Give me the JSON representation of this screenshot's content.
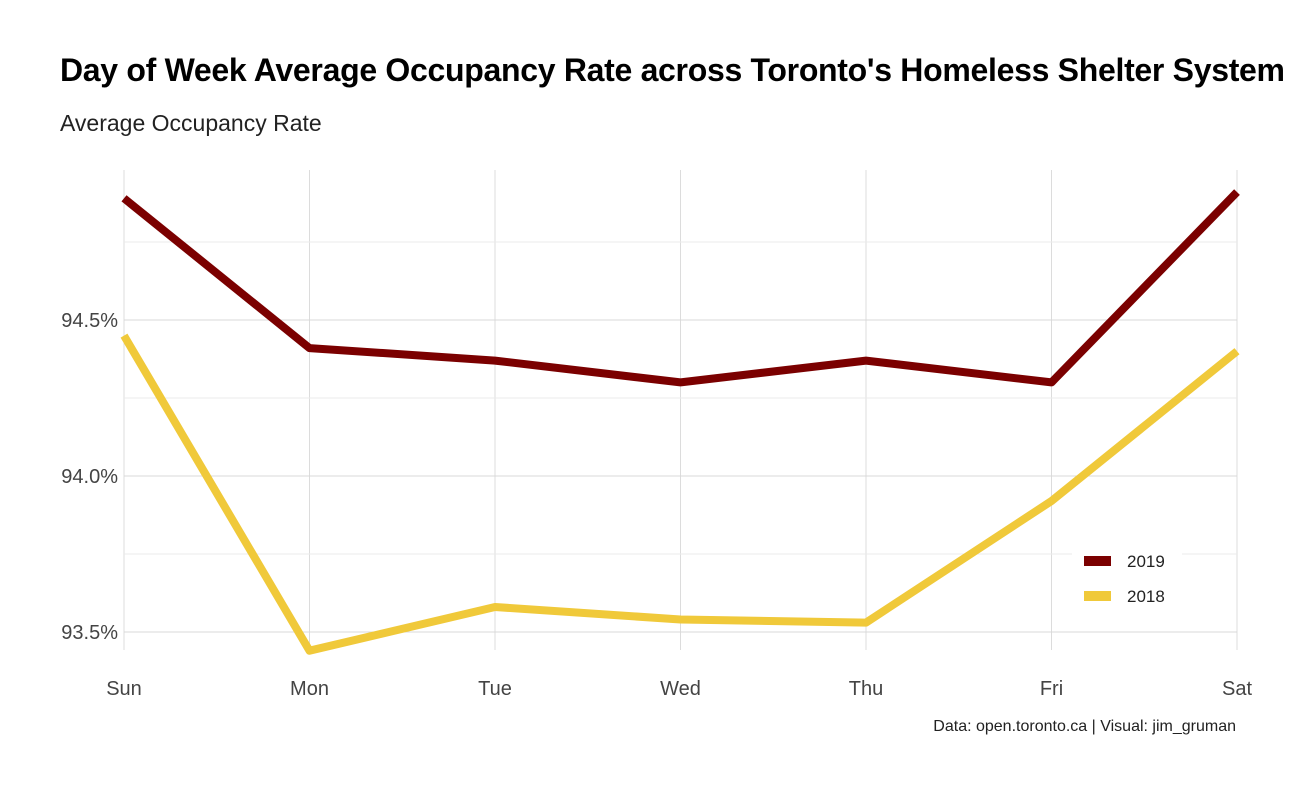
{
  "title": "Day of Week Average Occupancy Rate across Toronto's Homeless Shelter System",
  "subtitle": "Average Occupancy Rate",
  "caption": "Data: open.toronto.ca | Visual: jim_gruman",
  "chart_data": {
    "type": "line",
    "title": "Day of Week Average Occupancy Rate across Toronto's Homeless Shelter System",
    "subtitle": "Average Occupancy Rate",
    "xlabel": "",
    "ylabel": "",
    "categories": [
      "Sun",
      "Mon",
      "Tue",
      "Wed",
      "Thu",
      "Fri",
      "Sat"
    ],
    "series": [
      {
        "name": "2019",
        "color": "#7b0000",
        "values": [
          94.89,
          94.41,
          94.37,
          94.3,
          94.37,
          94.3,
          94.91
        ]
      },
      {
        "name": "2018",
        "color": "#f0c93a",
        "values": [
          94.45,
          93.44,
          93.58,
          93.54,
          93.53,
          93.92,
          94.4
        ]
      }
    ],
    "yticks": [
      93.5,
      94.0,
      94.5
    ],
    "ytick_labels": [
      "93.5%",
      "94.0%",
      "94.5%"
    ],
    "ylim": [
      93.37,
      94.98
    ],
    "grid": true,
    "legend": "bottom-right"
  }
}
